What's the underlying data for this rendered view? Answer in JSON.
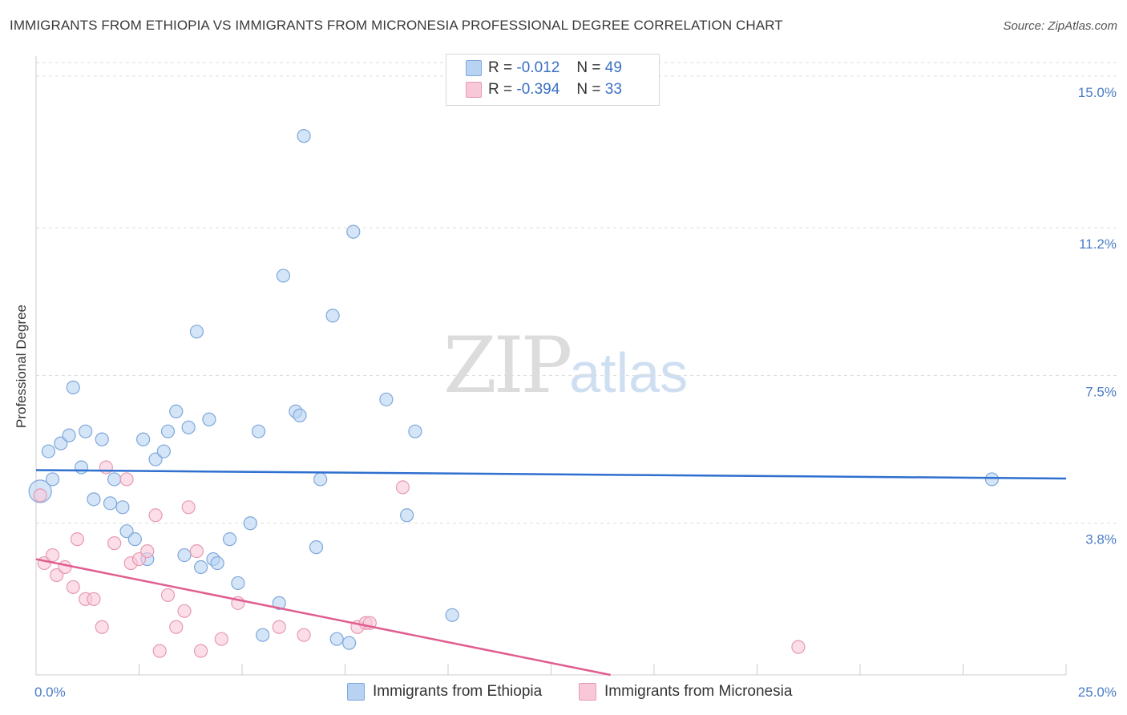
{
  "title": "IMMIGRANTS FROM ETHIOPIA VS IMMIGRANTS FROM MICRONESIA PROFESSIONAL DEGREE CORRELATION CHART",
  "source": "Source: ZipAtlas.com",
  "watermark": {
    "zip": "ZIP",
    "atlas": "atlas"
  },
  "legend": {
    "series1": {
      "r_label": "R =",
      "r_value": "-0.012",
      "n_label": "N =",
      "n_value": "49"
    },
    "series2": {
      "r_label": "R =",
      "r_value": "-0.394",
      "n_label": "N =",
      "n_value": "33"
    }
  },
  "bottom_legend": {
    "series1": "Immigrants from Ethiopia",
    "series2": "Immigrants from Micronesia"
  },
  "colors": {
    "series1_fill": "#b8d3f2",
    "series1_stroke": "#7fa8dc",
    "series1_line": "#2f6fcf",
    "series2_fill": "#f8c8d8",
    "series2_stroke": "#e79ab5",
    "series2_line": "#e05d8f",
    "tick_text": "#4a7cc7"
  },
  "chart_data": {
    "type": "scatter",
    "title": "IMMIGRANTS FROM ETHIOPIA VS IMMIGRANTS FROM MICRONESIA PROFESSIONAL DEGREE CORRELATION CHART",
    "xlabel": "",
    "ylabel": "Professional Degree",
    "xlim": [
      0,
      25
    ],
    "ylim": [
      0,
      15.5
    ],
    "x_tick_labels": [
      "0.0%",
      "25.0%"
    ],
    "y_ticks": [
      3.8,
      7.5,
      11.2,
      15.0
    ],
    "y_tick_labels": [
      "3.8%",
      "7.5%",
      "11.2%",
      "15.0%"
    ],
    "series": [
      {
        "name": "Immigrants from Ethiopia",
        "points": [
          [
            0.1,
            4.6
          ],
          [
            0.3,
            5.6
          ],
          [
            0.4,
            4.9
          ],
          [
            0.6,
            5.8
          ],
          [
            0.8,
            6.0
          ],
          [
            0.9,
            7.2
          ],
          [
            1.1,
            5.2
          ],
          [
            1.2,
            6.1
          ],
          [
            1.4,
            4.4
          ],
          [
            1.6,
            5.9
          ],
          [
            1.8,
            4.3
          ],
          [
            1.9,
            4.9
          ],
          [
            2.1,
            4.2
          ],
          [
            2.2,
            3.6
          ],
          [
            2.4,
            3.4
          ],
          [
            2.6,
            5.9
          ],
          [
            2.7,
            2.9
          ],
          [
            2.9,
            5.4
          ],
          [
            3.1,
            5.6
          ],
          [
            3.2,
            6.1
          ],
          [
            3.4,
            6.6
          ],
          [
            3.6,
            3.0
          ],
          [
            3.7,
            6.2
          ],
          [
            3.9,
            8.6
          ],
          [
            4.0,
            2.7
          ],
          [
            4.2,
            6.4
          ],
          [
            4.3,
            2.9
          ],
          [
            4.4,
            2.8
          ],
          [
            4.7,
            3.4
          ],
          [
            4.9,
            2.3
          ],
          [
            5.2,
            3.8
          ],
          [
            5.4,
            6.1
          ],
          [
            5.5,
            1.0
          ],
          [
            5.9,
            1.8
          ],
          [
            6.0,
            10.0
          ],
          [
            6.3,
            6.6
          ],
          [
            6.4,
            6.5
          ],
          [
            6.5,
            13.5
          ],
          [
            6.8,
            3.2
          ],
          [
            6.9,
            4.9
          ],
          [
            7.2,
            9.0
          ],
          [
            7.3,
            0.9
          ],
          [
            7.6,
            0.8
          ],
          [
            7.7,
            11.1
          ],
          [
            8.5,
            6.9
          ],
          [
            9.0,
            4.0
          ],
          [
            9.2,
            6.1
          ],
          [
            10.1,
            1.5
          ],
          [
            23.2,
            4.9
          ]
        ],
        "trend": {
          "x": [
            0,
            25
          ],
          "y": [
            5.13,
            4.92
          ]
        }
      },
      {
        "name": "Immigrants from Micronesia",
        "points": [
          [
            0.1,
            4.5
          ],
          [
            0.2,
            2.8
          ],
          [
            0.4,
            3.0
          ],
          [
            0.5,
            2.5
          ],
          [
            0.7,
            2.7
          ],
          [
            0.9,
            2.2
          ],
          [
            1.0,
            3.4
          ],
          [
            1.2,
            1.9
          ],
          [
            1.4,
            1.9
          ],
          [
            1.6,
            1.2
          ],
          [
            1.7,
            5.2
          ],
          [
            1.9,
            3.3
          ],
          [
            2.2,
            4.9
          ],
          [
            2.3,
            2.8
          ],
          [
            2.5,
            2.9
          ],
          [
            2.7,
            3.1
          ],
          [
            2.9,
            4.0
          ],
          [
            3.0,
            0.6
          ],
          [
            3.2,
            2.0
          ],
          [
            3.4,
            1.2
          ],
          [
            3.6,
            1.6
          ],
          [
            3.7,
            4.2
          ],
          [
            3.9,
            3.1
          ],
          [
            4.0,
            0.6
          ],
          [
            4.5,
            0.9
          ],
          [
            4.9,
            1.8
          ],
          [
            5.9,
            1.2
          ],
          [
            6.5,
            1.0
          ],
          [
            7.8,
            1.2
          ],
          [
            8.0,
            1.3
          ],
          [
            8.1,
            1.3
          ],
          [
            8.9,
            4.7
          ],
          [
            18.5,
            0.7
          ]
        ],
        "trend": {
          "x": [
            0,
            25
          ],
          "y": [
            2.9,
            -2.3
          ]
        }
      }
    ]
  }
}
